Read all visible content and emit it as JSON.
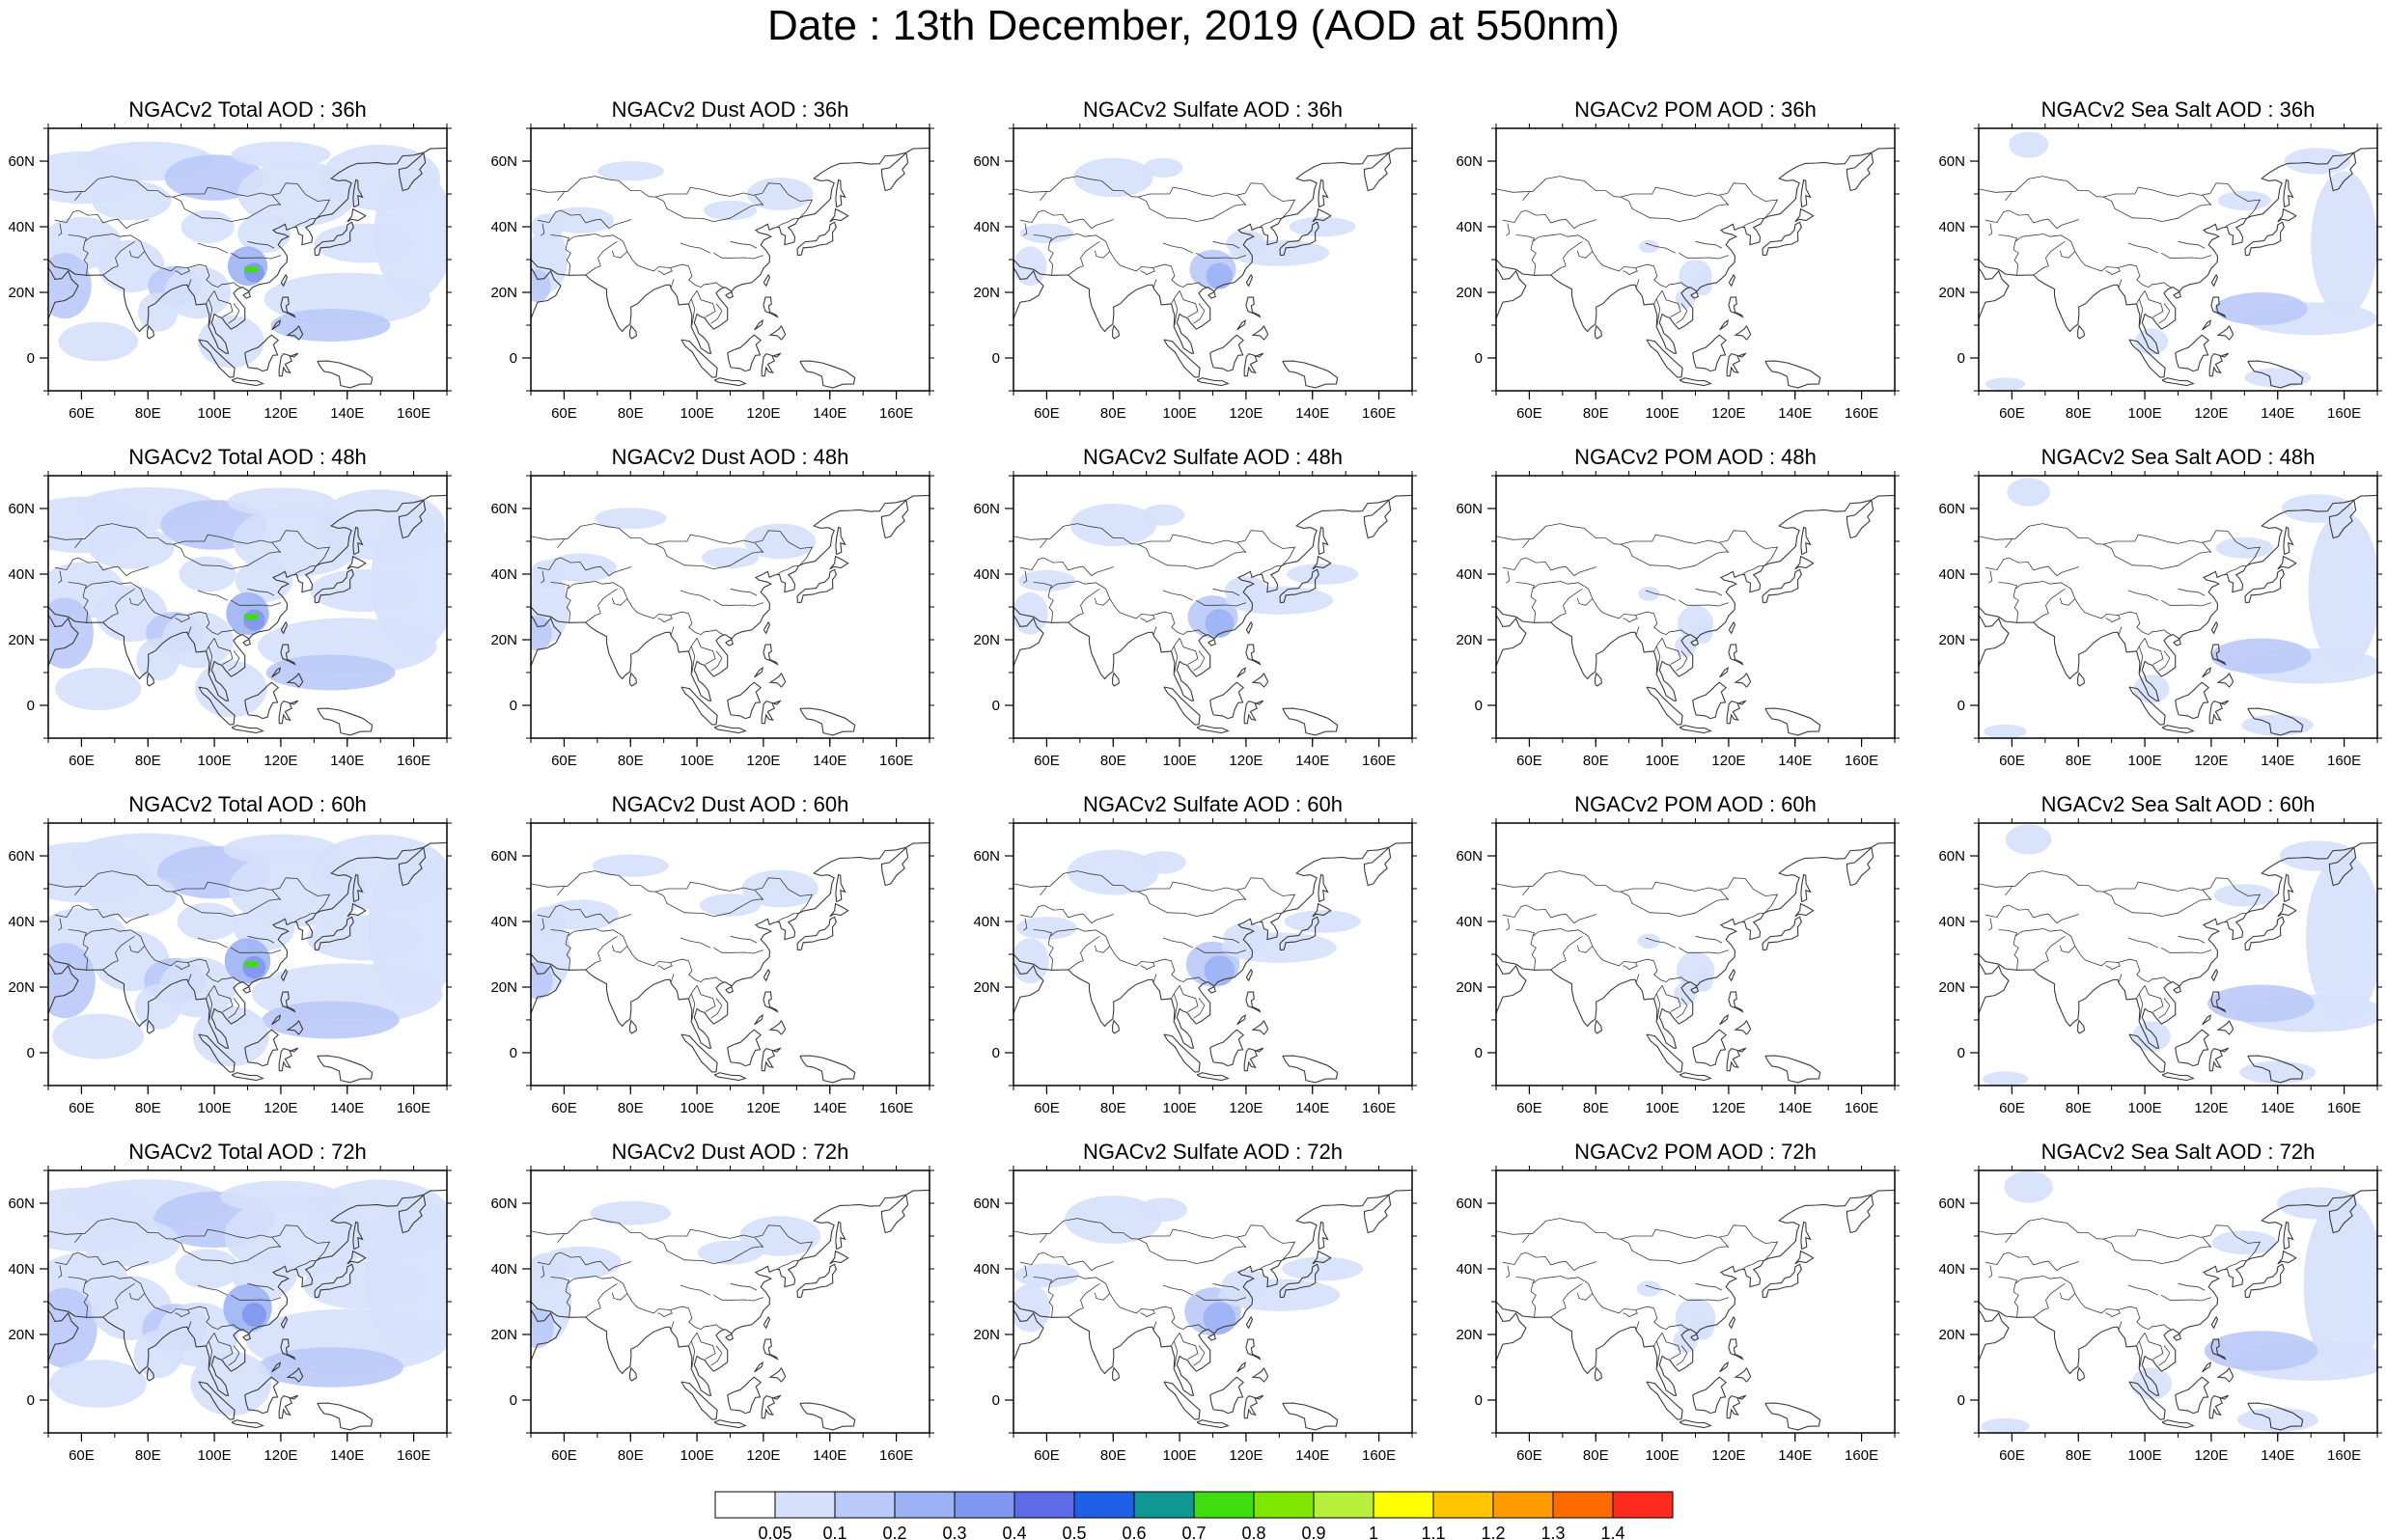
{
  "figure": {
    "title": "Date : 13th December, 2019 (AOD at 550nm)"
  },
  "axes": {
    "lon_range": [
      50,
      170
    ],
    "lat_range": [
      -10,
      70
    ],
    "x_ticks": [
      60,
      80,
      100,
      120,
      140,
      160
    ],
    "x_tick_labels": [
      "60E",
      "80E",
      "100E",
      "120E",
      "140E",
      "160E"
    ],
    "y_ticks": [
      0,
      20,
      40,
      60
    ],
    "y_tick_labels": [
      "0",
      "20N",
      "40N",
      "60N"
    ]
  },
  "species": [
    "Total",
    "Dust",
    "Sulfate",
    "POM",
    "Sea Salt"
  ],
  "lead_hours": [
    "36h",
    "48h",
    "60h",
    "72h"
  ],
  "panels": [
    [
      {
        "title": "NGACv2 Total AOD : 36h",
        "species": "Total",
        "lead": "36h"
      },
      {
        "title": "NGACv2 Dust AOD : 36h",
        "species": "Dust",
        "lead": "36h"
      },
      {
        "title": "NGACv2 Sulfate AOD : 36h",
        "species": "Sulfate",
        "lead": "36h"
      },
      {
        "title": "NGACv2 POM AOD : 36h",
        "species": "POM",
        "lead": "36h"
      },
      {
        "title": "NGACv2 Sea Salt AOD : 36h",
        "species": "Sea Salt",
        "lead": "36h"
      }
    ],
    [
      {
        "title": "NGACv2 Total AOD : 48h",
        "species": "Total",
        "lead": "48h"
      },
      {
        "title": "NGACv2 Dust AOD : 48h",
        "species": "Dust",
        "lead": "48h"
      },
      {
        "title": "NGACv2 Sulfate AOD : 48h",
        "species": "Sulfate",
        "lead": "48h"
      },
      {
        "title": "NGACv2 POM AOD : 48h",
        "species": "POM",
        "lead": "48h"
      },
      {
        "title": "NGACv2 Sea Salt AOD : 48h",
        "species": "Sea Salt",
        "lead": "48h"
      }
    ],
    [
      {
        "title": "NGACv2 Total AOD : 60h",
        "species": "Total",
        "lead": "60h"
      },
      {
        "title": "NGACv2 Dust AOD : 60h",
        "species": "Dust",
        "lead": "60h"
      },
      {
        "title": "NGACv2 Sulfate AOD : 60h",
        "species": "Sulfate",
        "lead": "60h"
      },
      {
        "title": "NGACv2 POM AOD : 60h",
        "species": "POM",
        "lead": "60h"
      },
      {
        "title": "NGACv2 Sea Salt AOD : 60h",
        "species": "Sea Salt",
        "lead": "60h"
      }
    ],
    [
      {
        "title": "NGACv2 Total AOD : 72h",
        "species": "Total",
        "lead": "72h"
      },
      {
        "title": "NGACv2 Dust AOD : 72h",
        "species": "Dust",
        "lead": "72h"
      },
      {
        "title": "NGACv2 Sulfate AOD : 72h",
        "species": "Sulfate",
        "lead": "72h"
      },
      {
        "title": "NGACv2 POM AOD : 72h",
        "species": "POM",
        "lead": "72h"
      },
      {
        "title": "NGACv2 Sea Salt  AOD : 72h",
        "species": "Sea Salt",
        "lead": "72h"
      }
    ]
  ],
  "colorbar": {
    "labels": [
      "0.05",
      "0.1",
      "0.2",
      "0.3",
      "0.4",
      "0.5",
      "0.6",
      "0.7",
      "0.8",
      "0.9",
      "1",
      "1.1",
      "1.2",
      "1.3",
      "1.4"
    ],
    "colors": [
      "#ffffff",
      "#d5e0fb",
      "#b9c9f8",
      "#9cb2f4",
      "#7f97ee",
      "#5f6ae6",
      "#1e5fe6",
      "#109693",
      "#3fdc10",
      "#7ee600",
      "#b8ef3c",
      "#ffff00",
      "#ffc500",
      "#ff9a00",
      "#ff6a00",
      "#ff2a1e"
    ]
  },
  "map_style": {
    "land_outline": "#3a3a3a",
    "aod_fill_light": "#d5e0fb",
    "aod_fill_mid": "#b9c9f8",
    "aod_fill_heavy": "#7f97ee",
    "aod_hotspot": "#3fdc10"
  }
}
